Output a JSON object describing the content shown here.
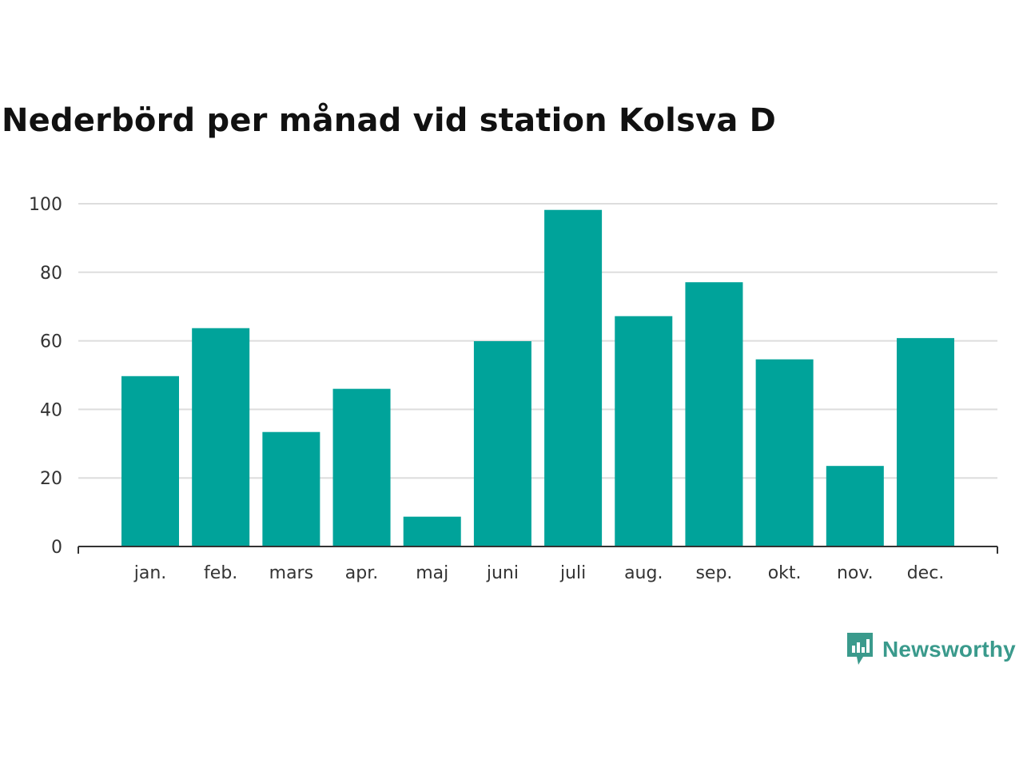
{
  "chart_data": {
    "type": "bar",
    "title": "Nederbörd per månad vid station Kolsva D",
    "categories": [
      "jan.",
      "feb.",
      "mars",
      "apr.",
      "maj",
      "juni",
      "juli",
      "aug.",
      "sep.",
      "okt.",
      "nov.",
      "dec."
    ],
    "values": [
      49.7,
      63.7,
      33.4,
      46.0,
      8.7,
      59.9,
      98.2,
      67.2,
      77.1,
      54.6,
      23.5,
      60.8
    ],
    "ylim": [
      0,
      100
    ],
    "yticks": [
      0,
      20,
      40,
      60,
      80,
      100
    ],
    "xlabel": "",
    "ylabel": "",
    "grid": true,
    "bar_color": "#00a39a",
    "grid_color": "#dddddd"
  },
  "brand": {
    "name": "Newsworthy",
    "icon": "newsworthy-logo-icon",
    "color": "#3a9a8c"
  }
}
